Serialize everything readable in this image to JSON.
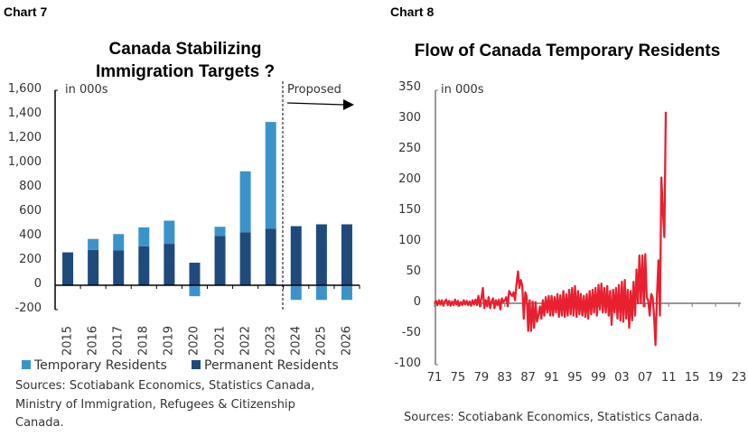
{
  "chart_data": [
    {
      "type": "bar",
      "stacked": true,
      "label": "Chart 7",
      "title": "Canada Stabilizing Immigration Targets ?",
      "unit_label": "in 000s",
      "annotation": "Proposed",
      "categories": [
        "2015",
        "2016",
        "2017",
        "2018",
        "2019",
        "2020",
        "2021",
        "2022",
        "2023",
        "2024",
        "2025",
        "2026"
      ],
      "series": [
        {
          "name": "Temporary Residents",
          "color": "#3b94c9",
          "values": [
            -5,
            90,
            135,
            155,
            190,
            -90,
            75,
            500,
            875,
            -120,
            -120,
            -120
          ]
        },
        {
          "name": "Permanent Residents",
          "color": "#1f4a7c",
          "values": [
            270,
            290,
            285,
            320,
            340,
            185,
            405,
            435,
            465,
            485,
            500,
            500
          ]
        }
      ],
      "ylim": [
        -200,
        1600
      ],
      "yticks": [
        "-200",
        "0",
        "200",
        "400",
        "600",
        "800",
        "1,000",
        "1,200",
        "1,400",
        "1,600"
      ],
      "grid": false,
      "legend": "bottom",
      "source": [
        "Sources: Scotiabank Economics, Statistics Canada,",
        "Ministry of Immigration, Refugees & Citizenship",
        "Canada."
      ]
    },
    {
      "type": "line",
      "label": "Chart 8",
      "title": "Flow of Canada Temporary Residents",
      "unit_label": "in 000s",
      "frequency": "quarterly",
      "x_start": "1971Q1",
      "color": "#e8202f",
      "values": [
        0,
        4,
        -3,
        5,
        -2,
        5,
        -4,
        3,
        6,
        -3,
        4,
        -4,
        3,
        -3,
        6,
        -2,
        4,
        -4,
        2,
        -3,
        5,
        -2,
        4,
        -3,
        3,
        -4,
        5,
        -2,
        6,
        -3,
        12,
        -5,
        8,
        25,
        -8,
        5,
        -5,
        10,
        -8,
        3,
        8,
        -8,
        5,
        -3,
        6,
        -10,
        8,
        2,
        5,
        10,
        -5,
        20,
        15,
        12,
        18,
        5,
        30,
        52,
        25,
        38,
        28,
        -25,
        18,
        10,
        -45,
        5,
        -45,
        3,
        -40,
        2,
        -30,
        -20,
        -5,
        -25,
        5,
        -20,
        10,
        -15,
        12,
        -20,
        12,
        -20,
        10,
        -15,
        15,
        -22,
        13,
        -20,
        20,
        -22,
        15,
        -20,
        22,
        -18,
        25,
        -20,
        28,
        -22,
        20,
        -18,
        15,
        -20,
        12,
        -22,
        15,
        -25,
        20,
        -18,
        22,
        -15,
        25,
        -20,
        30,
        -10,
        32,
        -15,
        25,
        -15,
        28,
        -20,
        20,
        -35,
        22,
        -15,
        25,
        -25,
        30,
        -28,
        35,
        -30,
        38,
        -25,
        22,
        -40,
        20,
        -28,
        35,
        -20,
        55,
        0,
        78,
        0,
        78,
        -5,
        80,
        10,
        5,
        -20,
        15,
        10,
        -20,
        -68,
        15,
        70,
        -20,
        205,
        150,
        108,
        312
      ],
      "xticks": [
        "71",
        "75",
        "79",
        "83",
        "87",
        "91",
        "95",
        "99",
        "03",
        "07",
        "11",
        "15",
        "19",
        "23"
      ],
      "ylim": [
        -100,
        350
      ],
      "yticks": [
        "-100",
        "-50",
        "0",
        "50",
        "100",
        "150",
        "200",
        "250",
        "300",
        "350"
      ],
      "grid": false,
      "source": "Sources: Scotiabank Economics, Statistics Canada."
    }
  ]
}
